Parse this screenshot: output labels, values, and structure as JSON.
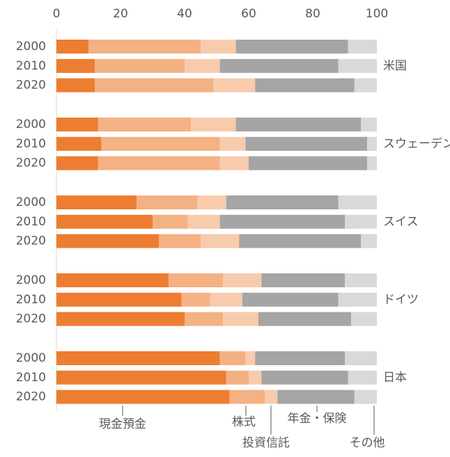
{
  "chart_data": {
    "type": "stacked-bar",
    "groups": [
      "米国",
      "スウェーデン",
      "スイス",
      "ドイツ",
      "日本"
    ],
    "categories": [
      "2000",
      "2010",
      "2020",
      "2000",
      "2010",
      "2020",
      "2000",
      "2010",
      "2020",
      "2000",
      "2010",
      "2020",
      "2000",
      "2010",
      "2020"
    ],
    "series": [
      {
        "name": "現金預金",
        "color": "#ed7d31",
        "values": [
          10,
          12,
          12,
          13,
          14,
          13,
          25,
          30,
          32,
          35,
          39,
          40,
          51,
          53,
          54
        ]
      },
      {
        "name": "株式",
        "color": "#f4b183",
        "values": [
          35,
          28,
          37,
          29,
          37,
          38,
          19,
          11,
          13,
          17,
          9,
          12,
          8,
          7,
          11
        ]
      },
      {
        "name": "投資信託",
        "color": "#f8cbad",
        "values": [
          11,
          11,
          13,
          14,
          8,
          9,
          9,
          10,
          12,
          12,
          10,
          11,
          3,
          4,
          4
        ]
      },
      {
        "name": "年金・保険",
        "color": "#a5a5a5",
        "values": [
          35,
          37,
          31,
          39,
          38,
          37,
          35,
          39,
          38,
          26,
          30,
          29,
          28,
          27,
          24
        ]
      },
      {
        "name": "その他",
        "color": "#d9d9d9",
        "values": [
          9,
          12,
          7,
          5,
          3,
          3,
          12,
          10,
          5,
          10,
          12,
          8,
          10,
          9,
          7
        ]
      }
    ],
    "xlim": [
      0,
      100
    ],
    "xticks": [
      0,
      20,
      40,
      60,
      80,
      100
    ]
  }
}
